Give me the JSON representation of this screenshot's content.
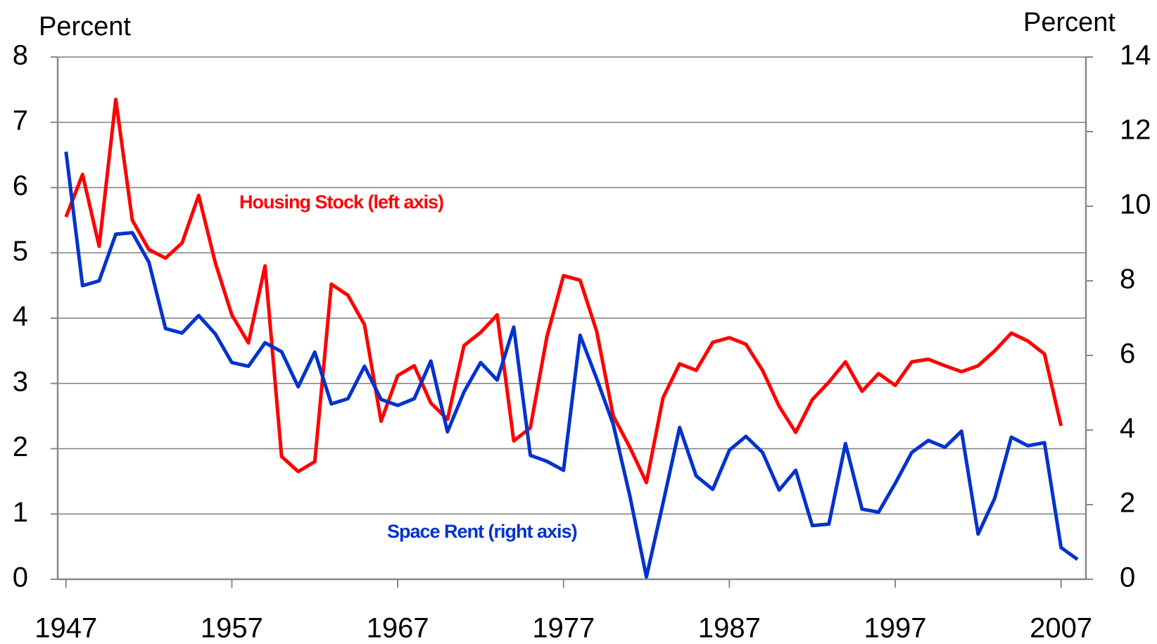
{
  "chart_data": {
    "type": "line",
    "y_label": "Percent",
    "y2_label": "Percent",
    "annotations": [
      {
        "text": "Housing Stock (left axis)",
        "color": "#ff0000"
      },
      {
        "text": "Space Rent (right axis)",
        "color": "#0033cc"
      }
    ],
    "x": [
      1947,
      1948,
      1949,
      1950,
      1951,
      1952,
      1953,
      1954,
      1955,
      1956,
      1957,
      1958,
      1959,
      1960,
      1961,
      1962,
      1963,
      1964,
      1965,
      1966,
      1967,
      1968,
      1969,
      1970,
      1971,
      1972,
      1973,
      1974,
      1975,
      1976,
      1977,
      1978,
      1979,
      1980,
      1981,
      1982,
      1983,
      1984,
      1985,
      1986,
      1987,
      1988,
      1989,
      1990,
      1991,
      1992,
      1993,
      1994,
      1995,
      1996,
      1997,
      1998,
      1999,
      2000,
      2001,
      2002,
      2003,
      2004,
      2005,
      2006,
      2007,
      2008
    ],
    "xlim": [
      1946.5,
      2008.5
    ],
    "xticks": [
      1947,
      1957,
      1967,
      1977,
      1987,
      1997,
      2007
    ],
    "ylim": [
      0,
      8
    ],
    "yticks": [
      0,
      1,
      2,
      3,
      4,
      5,
      6,
      7,
      8
    ],
    "y2lim": [
      0,
      14
    ],
    "y2ticks": [
      0,
      2,
      4,
      6,
      8,
      10,
      12,
      14
    ],
    "grid": true,
    "series": [
      {
        "name": "Housing Stock",
        "color": "#ff0000",
        "axis": "y",
        "values": [
          5.55,
          6.2,
          5.1,
          7.35,
          5.5,
          5.05,
          4.92,
          5.15,
          5.88,
          4.85,
          4.05,
          3.62,
          4.8,
          1.88,
          1.65,
          1.8,
          4.52,
          4.35,
          3.9,
          2.42,
          3.12,
          3.27,
          2.7,
          2.45,
          3.58,
          3.78,
          4.05,
          2.12,
          2.32,
          3.72,
          4.65,
          4.58,
          3.8,
          2.5,
          2.02,
          1.48,
          2.78,
          3.3,
          3.2,
          3.63,
          3.7,
          3.6,
          3.2,
          2.65,
          2.25,
          2.75,
          3.02,
          3.33,
          2.88,
          3.15,
          2.97,
          3.33,
          3.37,
          3.27,
          3.18,
          3.27,
          3.5,
          3.77,
          3.65,
          3.45,
          2.35,
          null
        ]
      },
      {
        "name": "Space Rent",
        "color": "#0033cc",
        "axis": "y2",
        "values": [
          11.46,
          7.87,
          8.0,
          9.25,
          9.29,
          8.5,
          6.72,
          6.6,
          7.07,
          6.58,
          5.81,
          5.71,
          6.34,
          6.1,
          5.16,
          6.09,
          4.7,
          4.84,
          5.71,
          4.82,
          4.66,
          4.84,
          5.85,
          3.95,
          5.02,
          5.81,
          5.34,
          6.76,
          3.32,
          3.16,
          2.92,
          6.54,
          5.38,
          4.15,
          2.23,
          0.06,
          2.04,
          4.07,
          2.77,
          2.41,
          3.46,
          3.83,
          3.4,
          2.39,
          2.92,
          1.44,
          1.48,
          3.64,
          1.88,
          1.8,
          2.57,
          3.4,
          3.72,
          3.54,
          3.97,
          1.21,
          2.17,
          3.81,
          3.58,
          3.66,
          0.85,
          0.53
        ]
      }
    ]
  }
}
